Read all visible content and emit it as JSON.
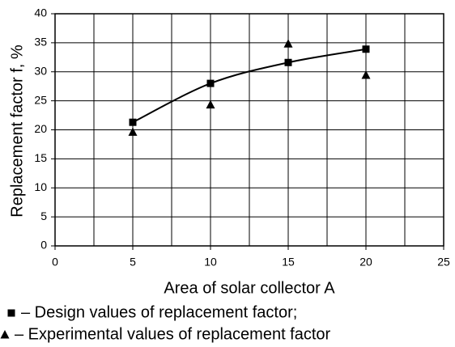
{
  "chart_data": {
    "type": "line",
    "x_label": "Area of solar collector A",
    "y_label": "Replacement factor f, %",
    "xlim": [
      0,
      25
    ],
    "xticks": [
      0,
      5,
      10,
      15,
      20,
      25
    ],
    "x_minor_gridlines": [
      2.5,
      7.5,
      12.5,
      17.5,
      22.5
    ],
    "ylim": [
      0,
      40
    ],
    "yticks": [
      0,
      5,
      10,
      15,
      20,
      25,
      30,
      35,
      40
    ],
    "grid": true,
    "series": [
      {
        "name": "– Design values of replacement factor;",
        "color": "#000000",
        "marker": "square",
        "line": true,
        "x": [
          5,
          10,
          15,
          20
        ],
        "values": [
          21.3,
          28,
          31.6,
          33.9
        ]
      },
      {
        "name": "– Experimental values of replacement factor",
        "color": "#000000",
        "marker": "triangle",
        "line": false,
        "x": [
          5,
          10,
          15,
          20
        ],
        "values": [
          19.6,
          24.3,
          34.8,
          29.4
        ]
      }
    ]
  }
}
